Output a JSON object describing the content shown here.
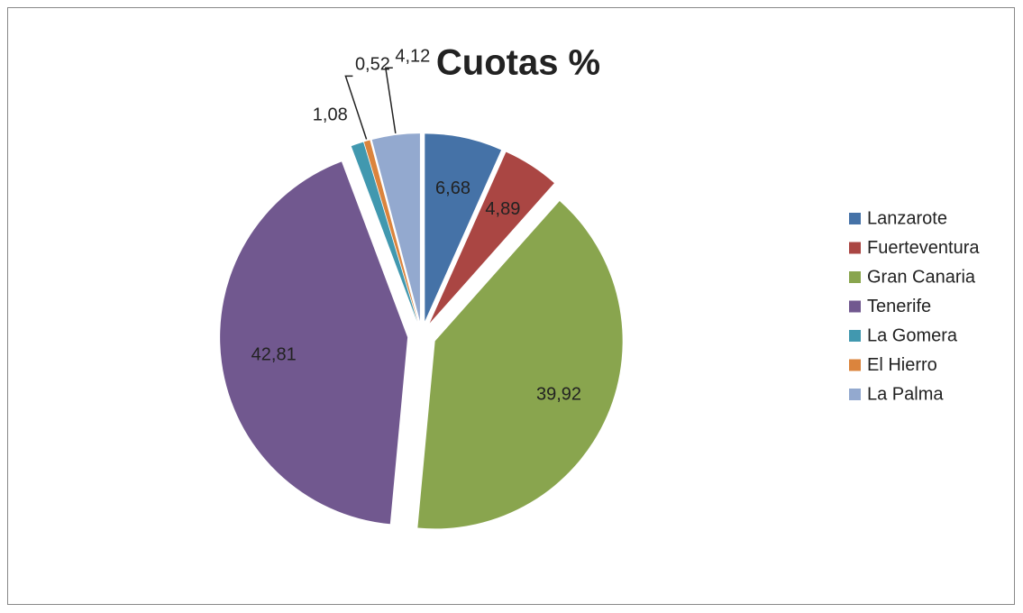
{
  "chart_data": {
    "type": "pie",
    "title": "Cuotas %",
    "categories": [
      "Lanzarote",
      "Fuerteventura",
      "Gran Canaria",
      "Tenerife",
      "La Gomera",
      "El Hierro",
      "La Palma"
    ],
    "values": [
      6.68,
      4.89,
      39.92,
      42.81,
      1.08,
      0.52,
      4.12
    ],
    "value_labels": [
      "6,68",
      "4,89",
      "39,92",
      "42,81",
      "1,08",
      "0,52",
      "4,12"
    ],
    "colors": [
      "#4572a7",
      "#aa4643",
      "#89a54e",
      "#71588f",
      "#4198af",
      "#db843d",
      "#93a9cf"
    ],
    "legend": "right"
  }
}
